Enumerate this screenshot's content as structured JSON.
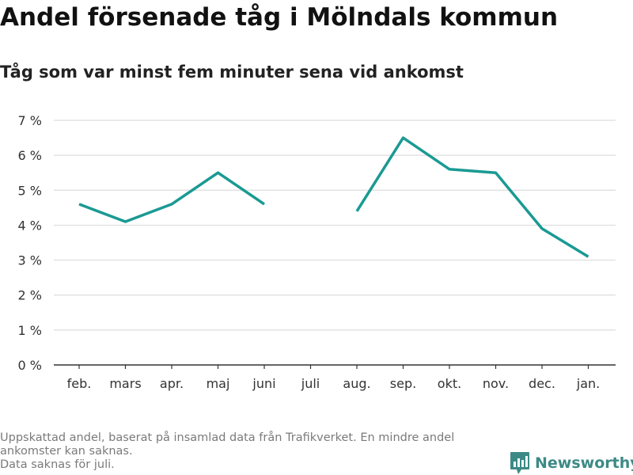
{
  "header": {
    "title": "Andel försenade tåg i Mölndals kommun",
    "subtitle": "Tåg som var minst fem minuter sena vid ankomst"
  },
  "footnote": {
    "lines": [
      "Uppskattad andel, baserat på insamlad data från Trafikverket. En mindre andel",
      "ankomster kan saknas.",
      "Data saknas för juli."
    ]
  },
  "brand": {
    "name": "Newsworthy",
    "icon": "newsworthy-logo-icon",
    "color": "#3c8a86"
  },
  "chart_data": {
    "type": "line",
    "categories": [
      "feb.",
      "mars",
      "apr.",
      "maj",
      "juni",
      "juli",
      "aug.",
      "sep.",
      "okt.",
      "nov.",
      "dec.",
      "jan."
    ],
    "series": [
      {
        "values": [
          4.6,
          4.1,
          4.6,
          5.5,
          4.6,
          null,
          4.4,
          6.5,
          5.6,
          5.5,
          3.9,
          3.1
        ],
        "color": "#1a9a93"
      }
    ],
    "y_ticks": [
      0,
      1,
      2,
      3,
      4,
      5,
      6,
      7
    ],
    "y_tick_labels": [
      "0 %",
      "1 %",
      "2 %",
      "3 %",
      "4 %",
      "5 %",
      "6 %",
      "7 %"
    ],
    "ylim": [
      0,
      7
    ],
    "xlabel": "",
    "ylabel": "",
    "grid": true,
    "legend": false
  }
}
